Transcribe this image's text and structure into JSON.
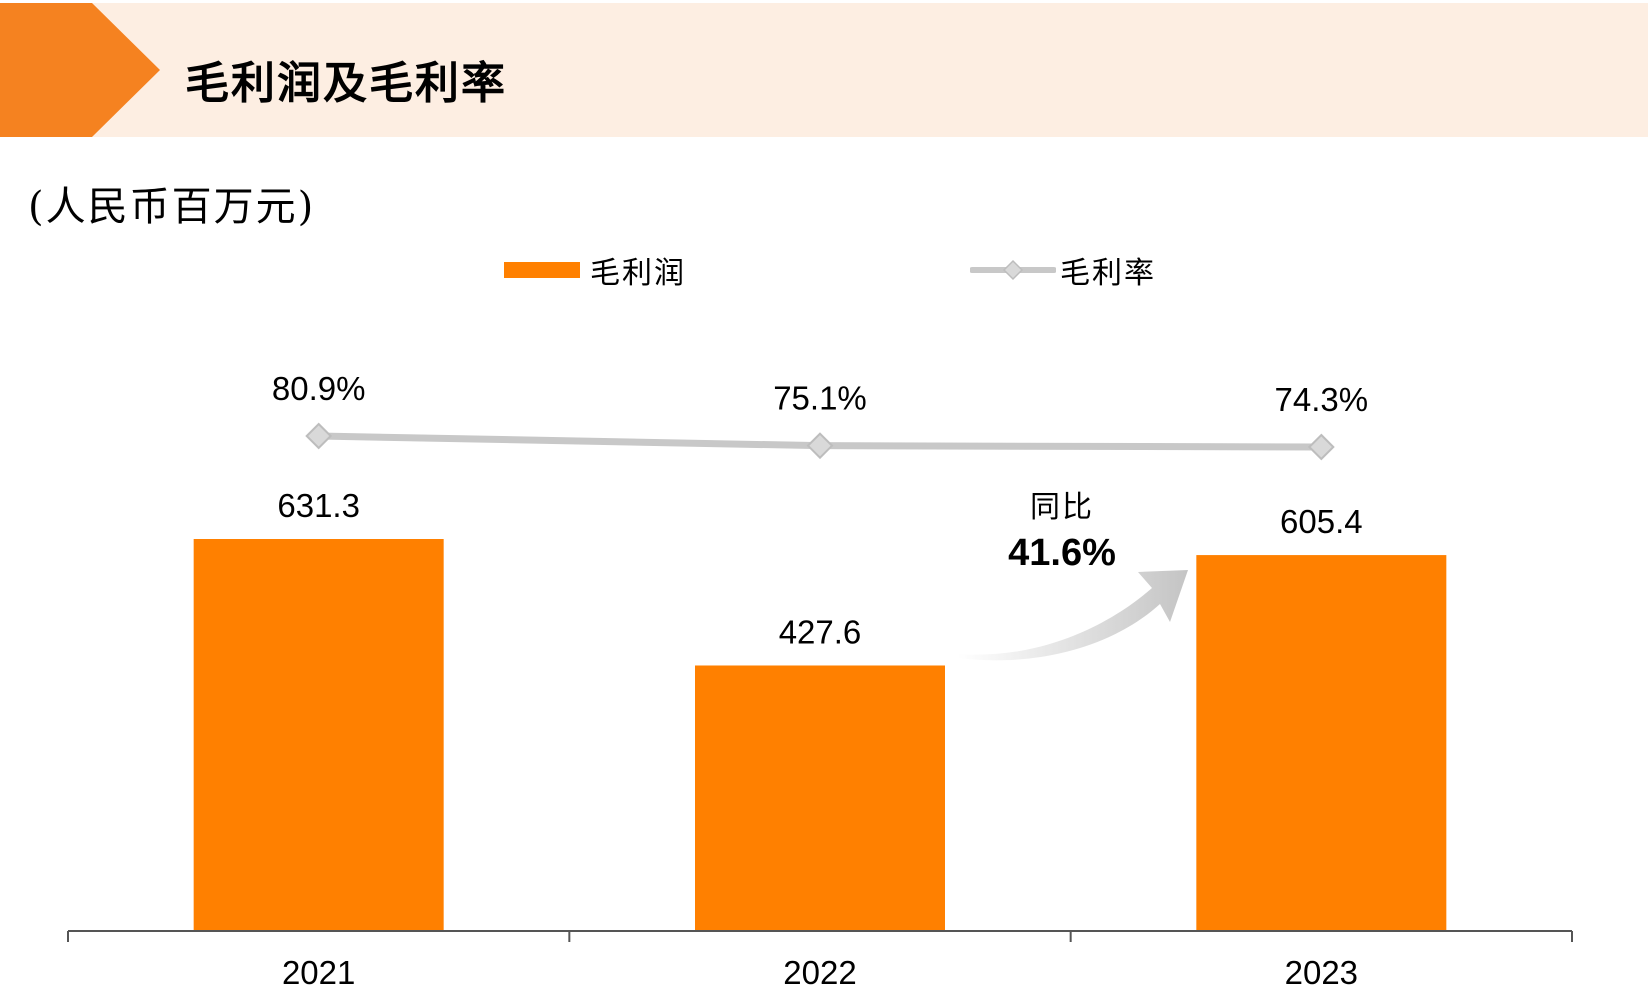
{
  "header": {
    "title": "毛利润及毛利率"
  },
  "unit_label": "(人民币百万元)",
  "legend": {
    "bar_label": "毛利润",
    "line_label": "毛利率"
  },
  "colors": {
    "bar": "#ff8000",
    "line": "#c8c8c8",
    "header_bg": "#fdeee2",
    "accent": "#f58220"
  },
  "annotation": {
    "label": "同比",
    "value": "41.6%"
  },
  "chart_data": {
    "type": "bar",
    "categories": [
      "2021",
      "2022",
      "2023"
    ],
    "series": [
      {
        "name": "毛利润",
        "type": "bar",
        "values": [
          631.3,
          427.6,
          605.4
        ],
        "labels": [
          "631.3",
          "427.6",
          "605.4"
        ]
      },
      {
        "name": "毛利率",
        "type": "line",
        "values": [
          80.9,
          75.1,
          74.3
        ],
        "labels": [
          "80.9%",
          "75.1%",
          "74.3%"
        ]
      }
    ],
    "legend_position": "top",
    "grid": false
  }
}
